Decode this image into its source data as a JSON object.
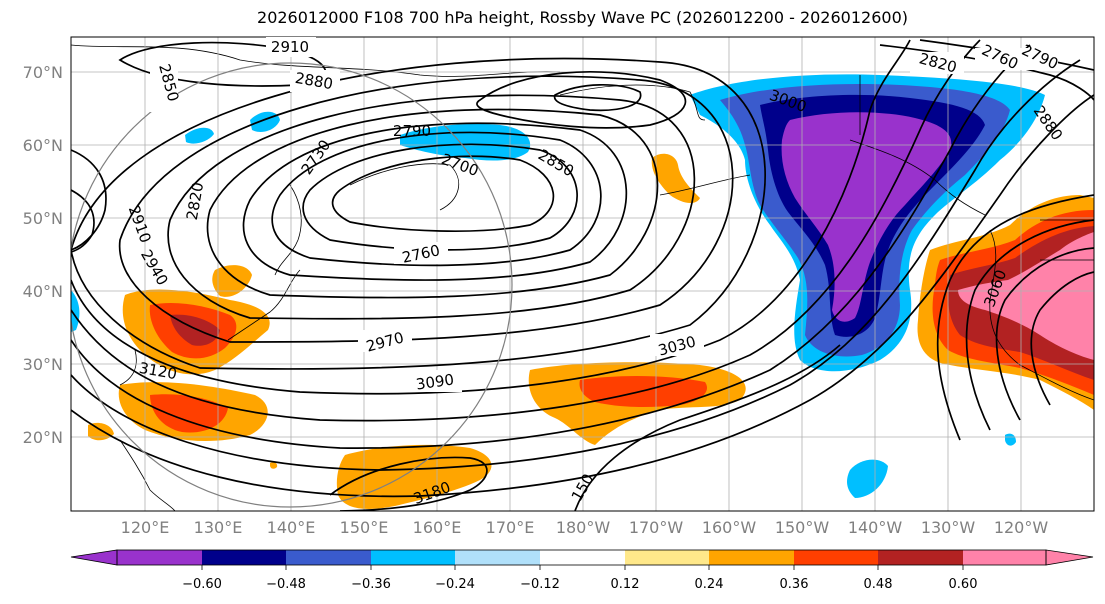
{
  "title": "2026012000 F108 700 hPa height, Rossby Wave PC (2026012200 - 2026012600)",
  "lat_labels": [
    "70°N",
    "60°N",
    "50°N",
    "40°N",
    "30°N",
    "20°N"
  ],
  "lon_labels": [
    "120°E",
    "130°E",
    "140°E",
    "150°E",
    "160°E",
    "170°E",
    "180°W",
    "170°W",
    "160°W",
    "150°W",
    "140°W",
    "130°W",
    "120°W"
  ],
  "contour_labels": [
    "2910",
    "2850",
    "2880",
    "2820",
    "2760",
    "2790",
    "3000",
    "2880",
    "2790",
    "2850",
    "2730",
    "2700",
    "2820",
    "2910",
    "2940",
    "2760",
    "2970",
    "3030",
    "3090",
    "3120",
    "3180",
    "3060",
    "150"
  ],
  "colorbar": {
    "ticks": [
      "−0.60",
      "−0.48",
      "−0.36",
      "−0.24",
      "−0.12",
      "0.12",
      "0.24",
      "0.36",
      "0.48",
      "0.60"
    ],
    "colors": [
      "#9932cc",
      "#00008b",
      "#3a5bcd",
      "#00bfff",
      "#b0e0fa",
      "#ffffff",
      "#ffe88a",
      "#ffa500",
      "#ff3f00",
      "#b22222",
      "#ff82a9"
    ]
  }
}
